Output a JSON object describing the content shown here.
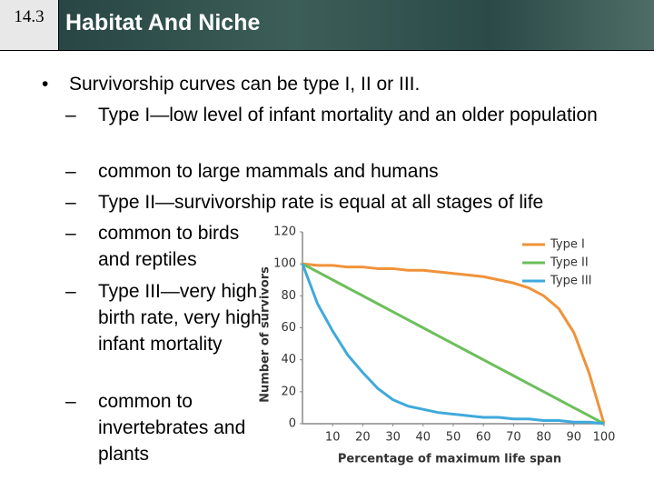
{
  "header": {
    "section": "14.3",
    "title": "Habitat And Niche"
  },
  "bullet": {
    "text": "Survivorship curves can be type I, II or III.",
    "subitems": [
      "Type I—low level of infant mortality and an older population",
      "common to large mammals and humans",
      "Type II—survivorship rate is equal at all stages of life",
      "common to birds and reptiles",
      "Type III—very high birth rate, very high infant mortality",
      "common to invertebrates and plants"
    ]
  },
  "chart_data": {
    "type": "line",
    "x_label": "Percentage of maximum life span",
    "y_label": "Number of survivors",
    "x": [
      0,
      5,
      10,
      15,
      20,
      25,
      30,
      35,
      40,
      45,
      50,
      55,
      60,
      65,
      70,
      75,
      80,
      85,
      90,
      95,
      100
    ],
    "series": [
      {
        "name": "Type I",
        "color": "#f0923a",
        "values": [
          100,
          99,
          99,
          98,
          98,
          97,
          97,
          96,
          96,
          95,
          94,
          93,
          92,
          90,
          88,
          85,
          80,
          72,
          57,
          32,
          0
        ]
      },
      {
        "name": "Type II",
        "color": "#6cbf5a",
        "values": [
          100,
          95,
          90,
          85,
          80,
          75,
          70,
          65,
          60,
          55,
          50,
          45,
          40,
          35,
          30,
          25,
          20,
          15,
          10,
          5,
          0
        ]
      },
      {
        "name": "Type III",
        "color": "#3fa9dc",
        "values": [
          100,
          75,
          58,
          43,
          32,
          22,
          15,
          11,
          9,
          7,
          6,
          5,
          4,
          4,
          3,
          3,
          2,
          2,
          1,
          1,
          0
        ]
      }
    ],
    "xlim": [
      0,
      100
    ],
    "xticks": [
      10,
      20,
      30,
      40,
      50,
      60,
      70,
      80,
      90,
      100
    ],
    "ylim": [
      0,
      120
    ],
    "yticks": [
      0,
      20,
      40,
      60,
      80,
      100,
      120
    ],
    "grid": false,
    "legend": "top-right"
  }
}
